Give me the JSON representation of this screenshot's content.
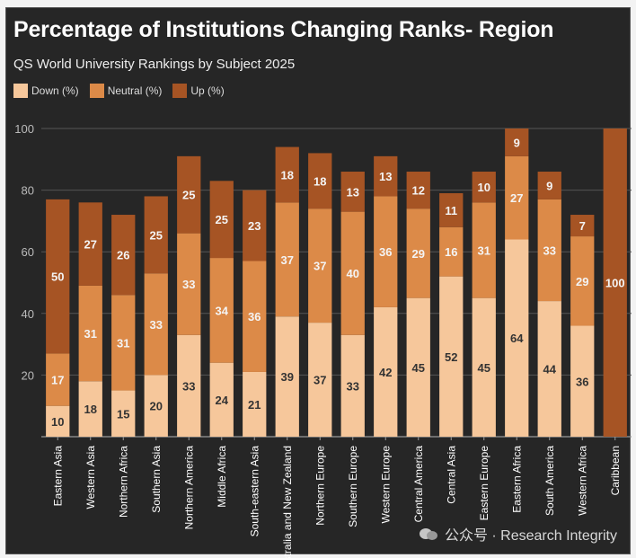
{
  "colors": {
    "down": "#f6c79b",
    "neutral": "#dc8a48",
    "up": "#a65424",
    "background": "#262626",
    "grid": "#555555",
    "text": "#dddddd"
  },
  "watermark": {
    "text": "公众号 · Research Integrity",
    "icon": "wechat-icon"
  },
  "chart_data": {
    "type": "bar",
    "stacked": true,
    "title": "Percentage of Institutions Changing Ranks- Region",
    "subtitle": "QS World University Rankings by Subject 2025",
    "xlabel": "",
    "ylabel": "",
    "ylim": [
      0,
      100
    ],
    "yticks": [
      20,
      40,
      60,
      80,
      100
    ],
    "grid": true,
    "legend_position": "top-left",
    "categories": [
      "Eastern Asia",
      "Western Asia",
      "Northern Africa",
      "Southern Asia",
      "Northern America",
      "Middle Africa",
      "South-eastern Asia",
      "Australia and New Zealand",
      "Northern Europe",
      "Southern Europe",
      "Western Europe",
      "Central America",
      "Central Asia",
      "Eastern Europe",
      "Eastern Africa",
      "South America",
      "Western Africa",
      "Caribbean"
    ],
    "series": [
      {
        "name": "Down (%)",
        "values": [
          10,
          18,
          15,
          20,
          33,
          24,
          21,
          39,
          37,
          33,
          42,
          45,
          52,
          45,
          64,
          44,
          36,
          0
        ]
      },
      {
        "name": "Neutral (%)",
        "values": [
          17,
          31,
          31,
          33,
          33,
          34,
          36,
          37,
          37,
          40,
          36,
          29,
          16,
          31,
          27,
          33,
          29,
          0
        ]
      },
      {
        "name": "Up (%)",
        "values": [
          50,
          27,
          26,
          25,
          25,
          25,
          23,
          18,
          18,
          13,
          13,
          12,
          11,
          10,
          9,
          9,
          7,
          100
        ]
      }
    ]
  }
}
